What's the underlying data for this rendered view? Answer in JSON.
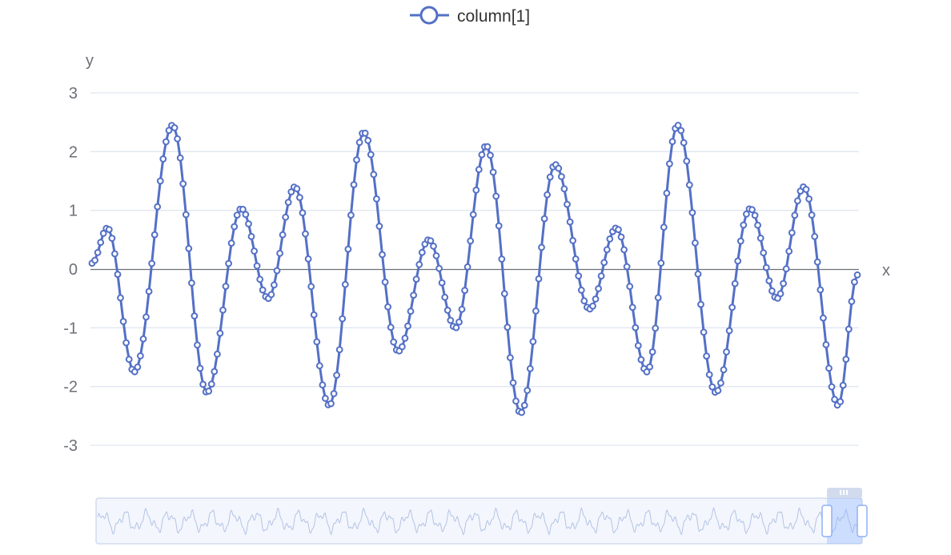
{
  "legend": {
    "series_name": "column[1]"
  },
  "colors": {
    "series": "#5470c6",
    "grid": "#e0e6f1",
    "axis": "#6e7079",
    "label": "#6e7079",
    "zoom_border": "#d2dbee",
    "zoom_fill": "#f3f6fc",
    "zoom_selected": "rgba(135,175,255,0.35)",
    "zoom_handle": "#ffffff"
  },
  "chart_data": {
    "type": "line",
    "xlabel": "x",
    "ylabel": "y",
    "ylim": [
      -3,
      3
    ],
    "yticks": [
      "3",
      "2",
      "1",
      "0",
      "-1",
      "-2",
      "-3"
    ],
    "grid": true,
    "legend_position": "top-center",
    "series": [
      {
        "name": "column[1]",
        "marker": "hollow-circle",
        "points_shown": 270,
        "visible_fraction_of_full_series": [
          0.95,
          1.0
        ],
        "local_extrema_in_view": [
          [
            0.0,
            0.1
          ],
          [
            0.02,
            0.7
          ],
          [
            0.055,
            -1.75
          ],
          [
            0.105,
            2.45
          ],
          [
            0.15,
            -2.1
          ],
          [
            0.195,
            1.03
          ],
          [
            0.23,
            -0.5
          ],
          [
            0.265,
            1.4
          ],
          [
            0.31,
            -2.32
          ],
          [
            0.355,
            2.33
          ],
          [
            0.4,
            -1.4
          ],
          [
            0.44,
            0.5
          ],
          [
            0.475,
            -1.0
          ],
          [
            0.515,
            2.1
          ],
          [
            0.56,
            -2.45
          ],
          [
            0.605,
            1.78
          ],
          [
            0.65,
            -0.68
          ],
          [
            0.685,
            0.7
          ],
          [
            0.725,
            -1.75
          ],
          [
            0.765,
            2.45
          ],
          [
            0.815,
            -2.1
          ],
          [
            0.86,
            1.03
          ],
          [
            0.895,
            -0.5
          ],
          [
            0.93,
            1.4
          ],
          [
            0.975,
            -2.32
          ],
          [
            1.0,
            -0.1
          ]
        ]
      }
    ]
  }
}
